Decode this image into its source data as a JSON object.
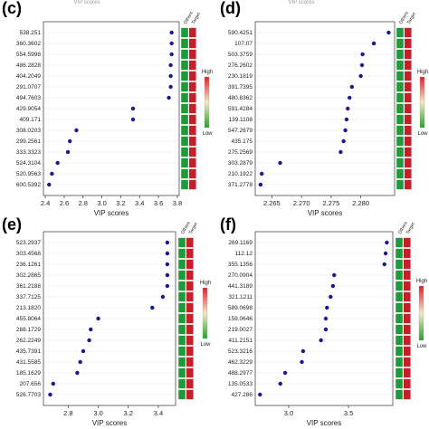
{
  "chart_data": [
    {
      "type": "scatter",
      "panel_label": "(c)",
      "top_text": "VIP scores",
      "xlabel": "VIP scores",
      "xticks": [
        "2.4",
        "2.6",
        "2.8",
        "3.0",
        "3.2",
        "3.4",
        "3.6",
        "3.8"
      ],
      "xlim": [
        2.38,
        3.82
      ],
      "categories": [
        "538.251",
        "360.3602",
        "554.5998",
        "486.2828",
        "404.2049",
        "291.0707",
        "494.7603",
        "429.9054",
        "409.171",
        "308.0203",
        "299.2561",
        "333.3323",
        "524.3104",
        "520.9563",
        "600.5392"
      ],
      "values": [
        3.74,
        3.74,
        3.74,
        3.73,
        3.73,
        3.73,
        3.71,
        3.33,
        3.33,
        2.73,
        2.66,
        2.64,
        2.53,
        2.47,
        2.44
      ],
      "heatmap": {
        "columns": [
          "Others",
          "Target"
        ],
        "legend_high": "High",
        "legend_low": "Low"
      }
    },
    {
      "type": "scatter",
      "panel_label": "(d)",
      "top_text": "VIP scores",
      "xlabel": "VIP scores",
      "xticks": [
        "2.265",
        "2.270",
        "2.275",
        "2.280"
      ],
      "xlim": [
        2.2622,
        2.2857
      ],
      "categories": [
        "590.4251",
        "107.07",
        "503.3759",
        "276.2602",
        "230.1819",
        "391.7395",
        "480.8362",
        "591.4284",
        "139.1108",
        "547.2679",
        "435.175",
        "275.2569",
        "303.2879",
        "210.1922",
        "371.2778"
      ],
      "values": [
        2.2847,
        2.2822,
        2.2803,
        2.2802,
        2.28,
        2.2785,
        2.2781,
        2.2778,
        2.2776,
        2.2774,
        2.2771,
        2.2766,
        2.2664,
        2.2633,
        2.2631
      ],
      "heatmap": {
        "columns": [
          "Others",
          "Target"
        ],
        "legend_high": "High",
        "legend_low": "Low"
      }
    },
    {
      "type": "scatter",
      "panel_label": "(e)",
      "xlabel": "VIP scores",
      "xticks": [
        "2.8",
        "3.0",
        "3.2",
        "3.4"
      ],
      "xlim": [
        2.635,
        3.515
      ],
      "categories": [
        "523.2937",
        "303.4568",
        "236.1261",
        "302.2865",
        "361.2188",
        "337.7125",
        "213.1820",
        "455.8064",
        "268.1729",
        "262.2249",
        "435.7391",
        "431.5585",
        "185.1629",
        "207.656",
        "526.7703"
      ],
      "values": [
        3.46,
        3.46,
        3.46,
        3.46,
        3.46,
        3.43,
        3.36,
        3.0,
        2.95,
        2.94,
        2.9,
        2.88,
        2.86,
        2.7,
        2.68
      ],
      "heatmap": {
        "columns": [
          "Others",
          "Target"
        ],
        "legend_high": "High",
        "legend_low": "Low"
      }
    },
    {
      "type": "scatter",
      "panel_label": "(f)",
      "xlabel": "VIP scores",
      "xticks": [
        "3.0",
        "3.5"
      ],
      "xlim": [
        2.72,
        3.87
      ],
      "categories": [
        "269.1169",
        "112.12",
        "355.1356",
        "270.0904",
        "441.3189",
        "321.1211",
        "589.0698",
        "159.0646",
        "219.0027",
        "411.2151",
        "523.3216",
        "462.3229",
        "488.2977",
        "135.0533",
        "427.286"
      ],
      "values": [
        3.82,
        3.81,
        3.8,
        3.38,
        3.37,
        3.35,
        3.32,
        3.31,
        3.31,
        3.27,
        3.12,
        3.11,
        2.97,
        2.93,
        2.76
      ],
      "heatmap": {
        "columns": [
          "Others",
          "Target"
        ],
        "legend_high": "High",
        "legend_low": "Low"
      }
    }
  ],
  "colors": {
    "dot": "#1a1a8c",
    "heat_green": "#1f9a3a",
    "heat_red": "#c81e2a",
    "legend_top": "#e0202a",
    "legend_bottom": "#2aa02a"
  }
}
